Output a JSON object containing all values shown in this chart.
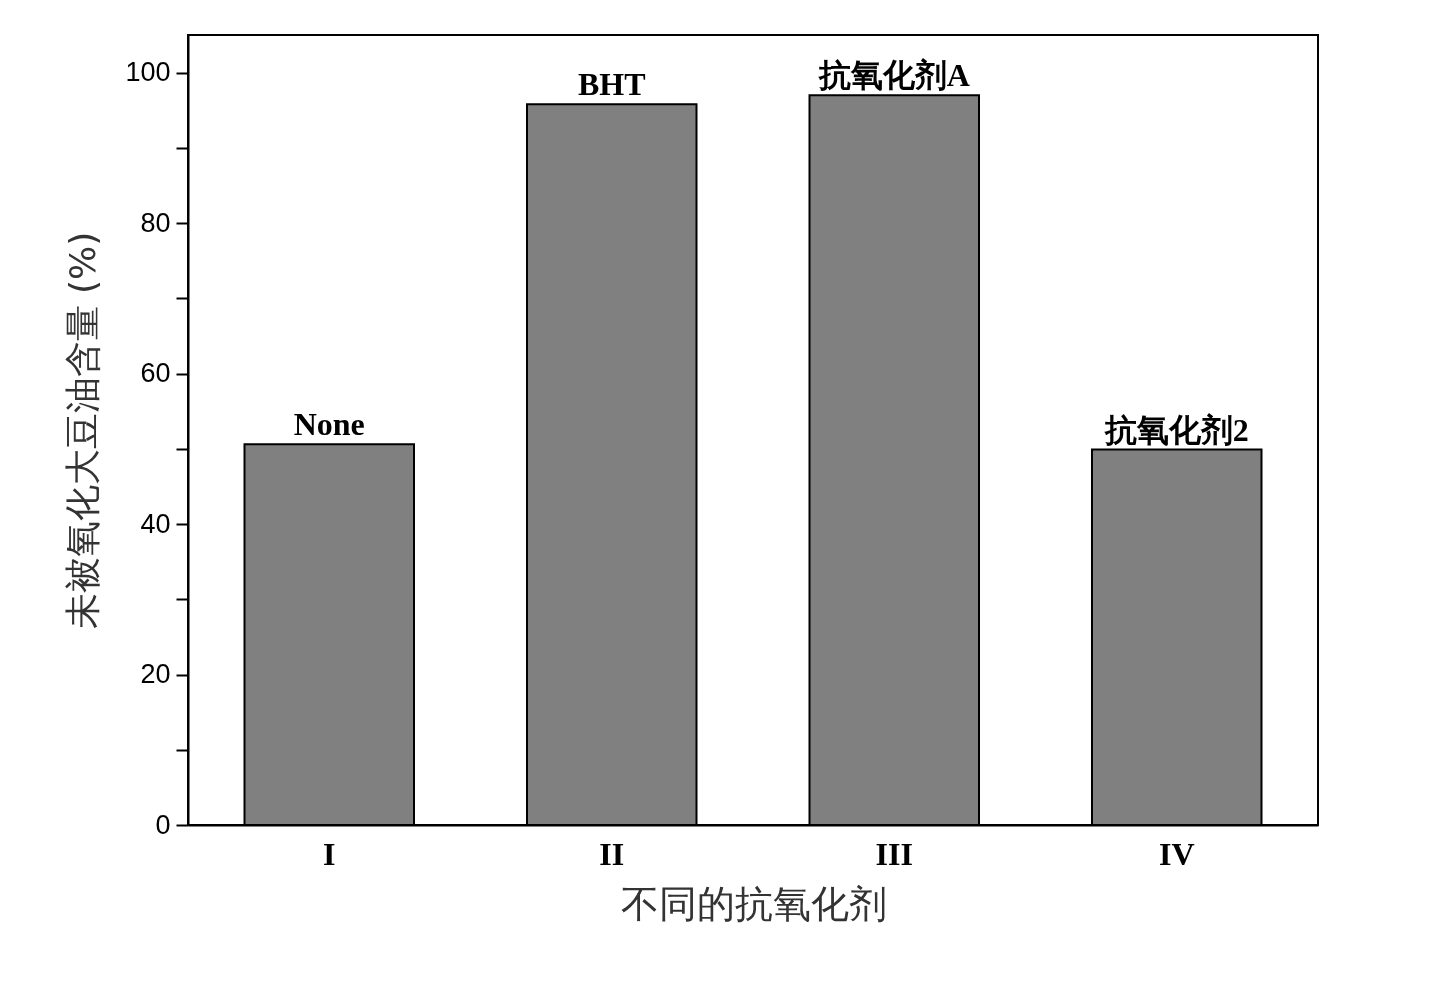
{
  "chart_data": {
    "type": "bar",
    "xlabel": "不同的抗氧化剂",
    "ylabel": "未被氧化大豆油含量 (%)",
    "categories": [
      "I",
      "II",
      "III",
      "IV"
    ],
    "values": [
      50.6,
      95.8,
      97.0,
      49.9
    ],
    "color": "#808080",
    "ylim": [
      0,
      105
    ],
    "yticks": [
      0,
      {
        "value": 10,
        "label": null
      },
      20,
      {
        "value": 30,
        "label": null
      },
      40,
      {
        "value": 50,
        "label": null
      },
      60,
      {
        "value": 70,
        "label": null
      },
      80,
      {
        "value": 90,
        "label": null
      },
      100
    ],
    "annotations": [
      {
        "text": "None",
        "x": "I",
        "y": 50.6
      },
      {
        "text": "BHT",
        "x": "II",
        "y": 95.8
      },
      {
        "text": "抗氧化剂A",
        "x": "III",
        "y": 97.0
      },
      {
        "text": "抗氧化剂2",
        "x": "IV",
        "y": 49.9
      }
    ],
    "grid": false
  }
}
